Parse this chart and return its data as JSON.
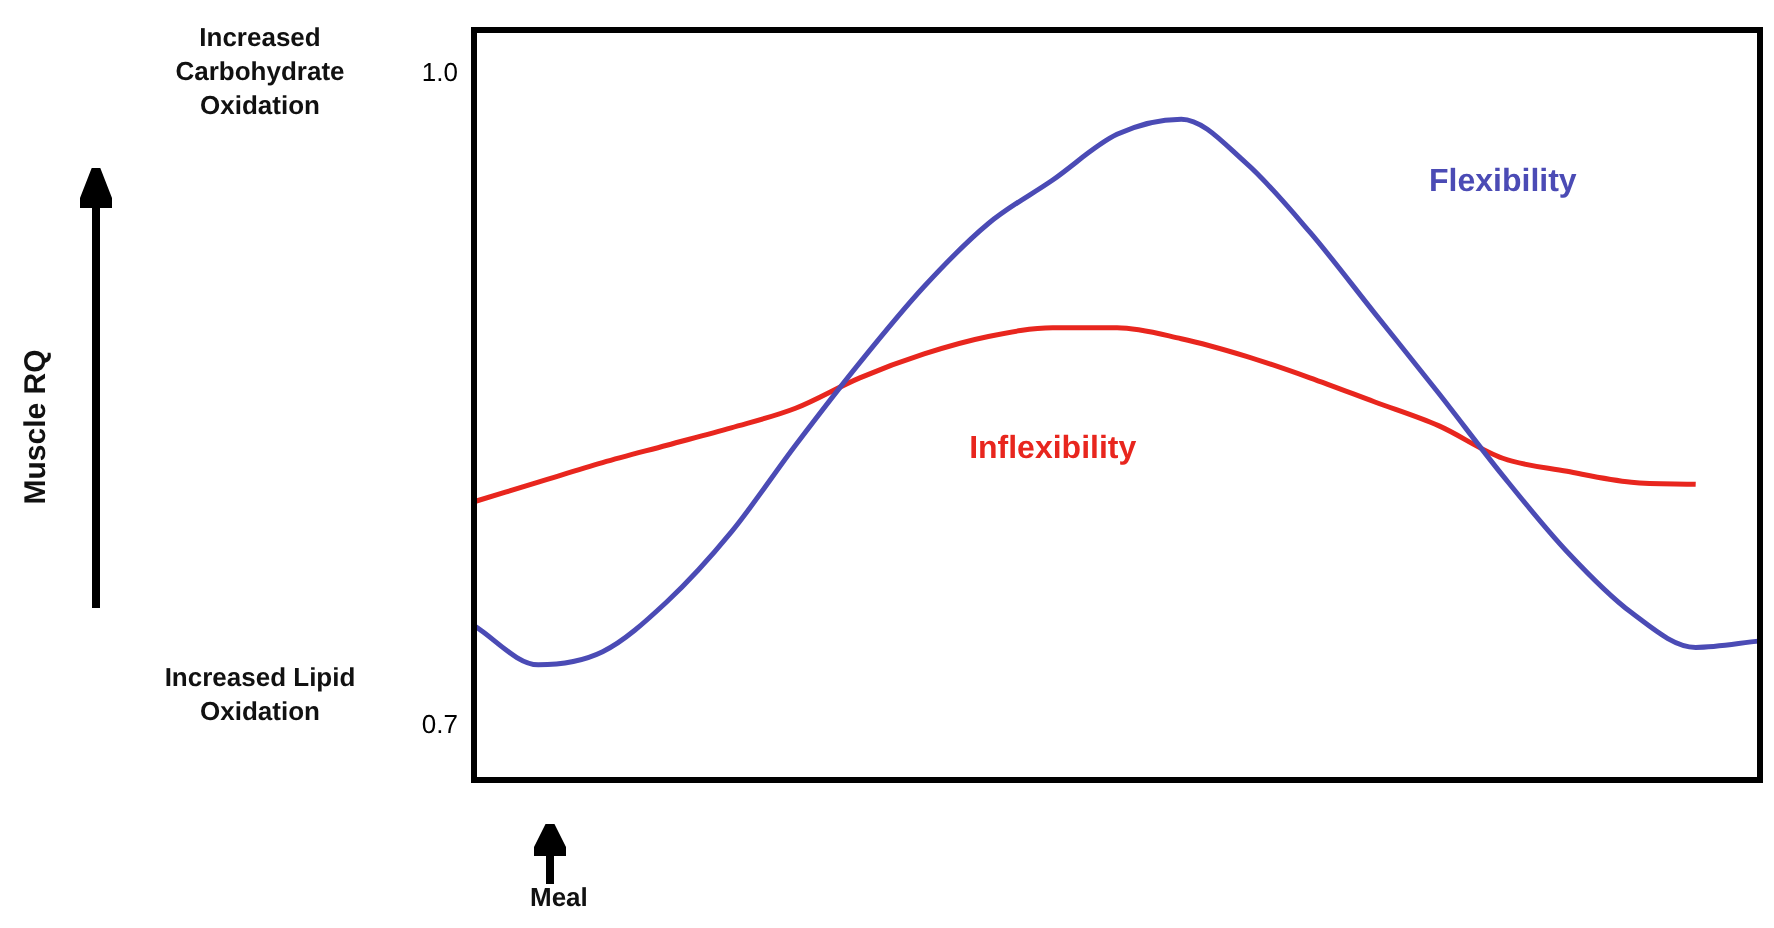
{
  "chart_data": {
    "type": "line",
    "annotations": [
      "Increased Carbohydrate Oxidation",
      "Increased Lipid Oxidation",
      "Meal",
      "Muscle RQ"
    ],
    "categories": [
      null,
      null,
      null,
      null,
      null,
      null,
      null,
      null,
      null,
      null,
      null,
      null,
      null,
      null,
      null,
      null,
      null,
      null,
      null,
      null,
      null
    ],
    "series": [
      {
        "name": "Flexibility",
        "color": "#4b4bb5",
        "values": [
          0.746,
          0.728,
          0.734,
          0.757,
          0.789,
          0.829,
          0.867,
          0.902,
          0.931,
          0.951,
          0.972,
          0.979,
          0.959,
          0.927,
          0.89,
          0.853,
          0.815,
          0.78,
          0.752,
          0.736,
          0.739
        ]
      },
      {
        "name": "Inflexibility",
        "color": "#e8261e",
        "values": [
          0.803,
          0.812,
          0.821,
          0.829,
          0.837,
          0.846,
          0.86,
          0.871,
          0.879,
          0.883,
          0.883,
          0.878,
          0.87,
          0.86,
          0.849,
          0.838,
          0.823,
          0.817,
          0.812,
          0.811,
          null
        ]
      }
    ],
    "ylim": [
      0.675,
      1.02
    ],
    "yticks": [
      {
        "value": 1.0,
        "label": "1.0"
      },
      0.7
    ],
    "grid": false,
    "legend": false,
    "marker": "none",
    "line_style": "solid"
  }
}
